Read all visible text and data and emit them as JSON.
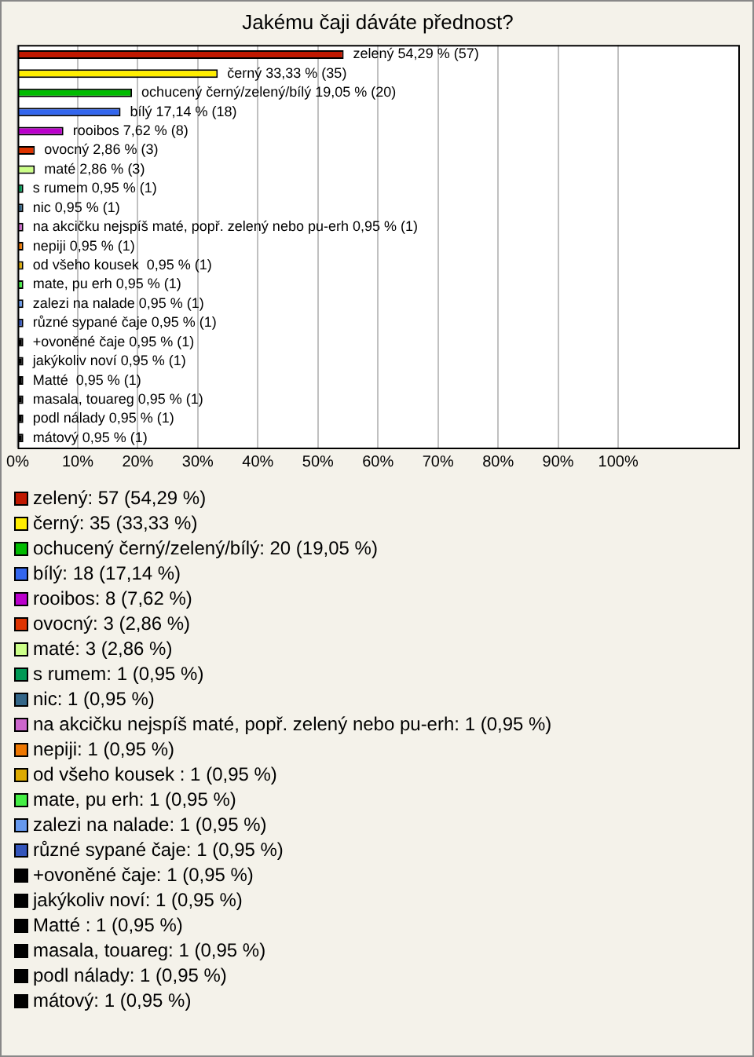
{
  "chart_data": {
    "type": "bar",
    "orientation": "horizontal",
    "title": "Jakému čaji dáváte přednost?",
    "categories": [
      "zelený",
      "černý",
      "ochucený černý/zelený/bílý",
      "bílý",
      "rooibos",
      "ovocný",
      "maté",
      "s rumem",
      "nic",
      "na akcičku nejspíš maté, popř. zelený nebo pu-erh",
      "nepiji",
      "od všeho kousek ",
      "mate, pu erh",
      "zalezi na nalade",
      "různé sypané čaje",
      "+ovoněné čaje",
      "jakýkoliv noví",
      "Matté ",
      "masala, touareg",
      "podl nálady",
      "mátový"
    ],
    "values": [
      54.29,
      33.33,
      19.05,
      17.14,
      7.62,
      2.86,
      2.86,
      0.95,
      0.95,
      0.95,
      0.95,
      0.95,
      0.95,
      0.95,
      0.95,
      0.95,
      0.95,
      0.95,
      0.95,
      0.95,
      0.95
    ],
    "value_labels": [
      "54,29 % (57)",
      "33,33 % (35)",
      "19,05 % (20)",
      "17,14 % (18)",
      "7,62 % (8)",
      "2,86 % (3)",
      "2,86 % (3)",
      "0,95 % (1)",
      "0,95 % (1)",
      "0,95 % (1)",
      "0,95 % (1)",
      "0,95 % (1)",
      "0,95 % (1)",
      "0,95 % (1)",
      "0,95 % (1)",
      "0,95 % (1)",
      "0,95 % (1)",
      "0,95 % (1)",
      "0,95 % (1)",
      "0,95 % (1)",
      "0,95 % (1)"
    ],
    "colors": [
      "#c01800",
      "#ffee00",
      "#00bb00",
      "#3366ee",
      "#bb00cc",
      "#dd3300",
      "#ccff88",
      "#009955",
      "#336688",
      "#cc66cc",
      "#ee7700",
      "#ddaa00",
      "#44ee44",
      "#6699ee",
      "#3355bb",
      "#000000",
      "#000000",
      "#000000",
      "#000000",
      "#000000",
      "#000000"
    ],
    "xlim": [
      0,
      120
    ],
    "xticks": [
      {
        "value": 0,
        "label": "0%"
      },
      {
        "value": 10,
        "label": "10%"
      },
      {
        "value": 20,
        "label": "20%"
      },
      {
        "value": 30,
        "label": "30%"
      },
      {
        "value": 40,
        "label": "40%"
      },
      {
        "value": 50,
        "label": "50%"
      },
      {
        "value": 60,
        "label": "60%"
      },
      {
        "value": 70,
        "label": "70%"
      },
      {
        "value": 80,
        "label": "80%"
      },
      {
        "value": 90,
        "label": "90%"
      },
      {
        "value": 100,
        "label": "100%"
      }
    ],
    "grid": "x",
    "tick_labels": "x",
    "annotations": [
      "zelený: 57 (54,29 %)",
      "černý: 35 (33,33 %)",
      "ochucený černý/zelený/bílý: 20 (19,05 %)",
      "bílý: 18 (17,14 %)",
      "rooibos: 8 (7,62 %)",
      "ovocný: 3 (2,86 %)",
      "maté: 3 (2,86 %)",
      "s rumem: 1 (0,95 %)",
      "nic: 1 (0,95 %)",
      "na akcičku nejspíš maté, popř. zelený nebo pu-erh: 1 (0,95 %)",
      "nepiji: 1 (0,95 %)",
      "od všeho kousek : 1 (0,95 %)",
      "mate, pu erh: 1 (0,95 %)",
      "zalezi na nalade: 1 (0,95 %)",
      "různé sypané čaje: 1 (0,95 %)",
      "+ovoněné čaje: 1 (0,95 %)",
      "jakýkoliv noví: 1 (0,95 %)",
      "Matté : 1 (0,95 %)",
      "masala, touareg: 1 (0,95 %)",
      "podl nálady: 1 (0,95 %)",
      "mátový: 1 (0,95 %)"
    ]
  }
}
